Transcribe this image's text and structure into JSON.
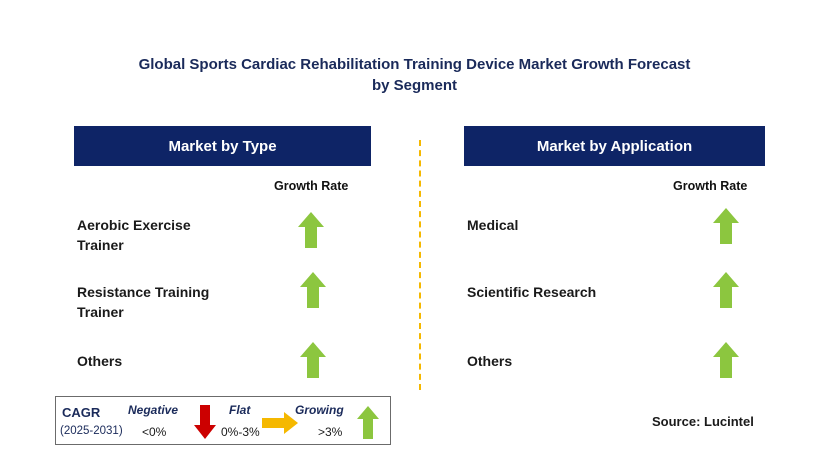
{
  "title_line1": "Global Sports Cardiac Rehabilitation Training Device Market Growth Forecast",
  "title_line2": "by Segment",
  "left_panel": {
    "header": "Market by Type",
    "growth_label": "Growth Rate",
    "rows": [
      {
        "line1": "Aerobic Exercise",
        "line2": "Trainer",
        "trend": "growing"
      },
      {
        "line1": "Resistance Training",
        "line2": "Trainer",
        "trend": "growing"
      },
      {
        "line1": "Others",
        "line2": "",
        "trend": "growing"
      }
    ]
  },
  "right_panel": {
    "header": "Market by Application",
    "growth_label": "Growth Rate",
    "rows": [
      {
        "line1": "Medical",
        "trend": "growing"
      },
      {
        "line1": "Scientific Research",
        "trend": "growing"
      },
      {
        "line1": "Others",
        "trend": "growing"
      }
    ]
  },
  "legend": {
    "cagr_label": "CAGR",
    "period": "(2025-2031)",
    "negative_label": "Negative",
    "negative_value": "<0%",
    "flat_label": "Flat",
    "flat_value": "0%-3%",
    "growing_label": "Growing",
    "growing_value": ">3%"
  },
  "source": "Source: Lucintel",
  "colors": {
    "header_bg": "#0e2466",
    "growing_arrow": "#8cc63f",
    "negative_arrow": "#cc0000",
    "flat_arrow": "#f5b800",
    "divider": "#f5b800"
  }
}
